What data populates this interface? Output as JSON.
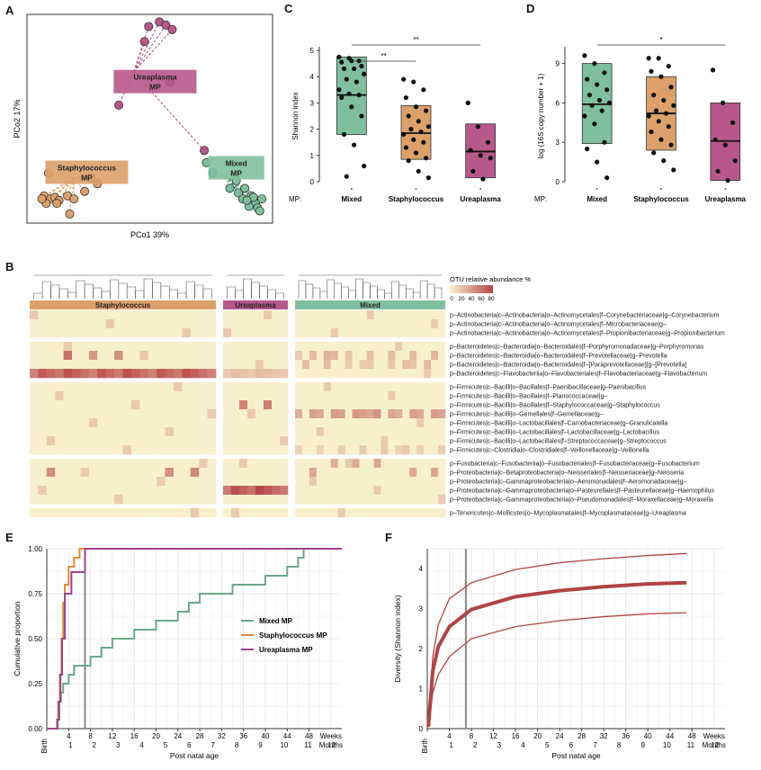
{
  "panel_labels": {
    "a": "A",
    "b": "B",
    "c": "C",
    "d": "D",
    "e": "E",
    "f": "F"
  },
  "colors": {
    "mixed": "#5fa88a",
    "staph": "#e0a060",
    "urea": "#a8487a",
    "mixed_fill": "#7fbf9f",
    "staph_fill": "#dca06a",
    "urea_fill": "#b8588a",
    "heat_bg": "#f8f0cc",
    "heat_hi": "#b8484a",
    "f_line": "#b04446",
    "e_green": "#6aa88a",
    "e_orange": "#e08a3a",
    "e_purple": "#a0408a"
  },
  "chart_data": [
    {
      "panel": "A",
      "type": "scatter",
      "xlabel": "PCo1 39%",
      "ylabel": "PCo2 17%",
      "groups": [
        {
          "name": "Ureaplasma MP",
          "label_lines": [
            "Ureaplasma",
            "MP"
          ],
          "centroid": [
            -0.05,
            0.62
          ],
          "points": [
            [
              0.02,
              0.92
            ],
            [
              0.07,
              0.95
            ],
            [
              0.1,
              0.93
            ],
            [
              0.13,
              0.9
            ],
            [
              0.0,
              0.82
            ],
            [
              -0.12,
              0.4
            ],
            [
              0.12,
              0.55
            ],
            [
              0.28,
              0.1
            ]
          ]
        },
        {
          "name": "Staphylococcus MP",
          "label_lines": [
            "Staphylococcus",
            "MP"
          ],
          "centroid": [
            -0.33,
            -0.08
          ],
          "points": [
            [
              -0.45,
              -0.05
            ],
            [
              -0.47,
              -0.2
            ],
            [
              -0.44,
              -0.22
            ],
            [
              -0.42,
              -0.21
            ],
            [
              -0.4,
              -0.23
            ],
            [
              -0.46,
              -0.25
            ],
            [
              -0.41,
              -0.25
            ],
            [
              -0.36,
              -0.2
            ],
            [
              -0.33,
              -0.22
            ],
            [
              -0.28,
              -0.17
            ],
            [
              -0.25,
              -0.08
            ],
            [
              -0.22,
              -0.12
            ],
            [
              -0.35,
              -0.32
            ],
            [
              -0.48,
              -0.22
            ]
          ]
        },
        {
          "name": "Mixed MP",
          "label_lines": [
            "Mixed",
            "MP"
          ],
          "centroid": [
            0.38,
            -0.07
          ],
          "points": [
            [
              0.29,
              0.02
            ],
            [
              0.32,
              -0.05
            ],
            [
              0.4,
              -0.15
            ],
            [
              0.44,
              -0.18
            ],
            [
              0.46,
              -0.22
            ],
            [
              0.5,
              -0.2
            ],
            [
              0.52,
              -0.25
            ],
            [
              0.49,
              -0.27
            ],
            [
              0.53,
              -0.28
            ],
            [
              0.51,
              -0.21
            ],
            [
              0.47,
              -0.15
            ],
            [
              0.43,
              -0.1
            ],
            [
              0.55,
              -0.22
            ],
            [
              0.54,
              -0.3
            ],
            [
              0.48,
              -0.23
            ]
          ]
        }
      ]
    },
    {
      "panel": "C",
      "type": "box",
      "ylabel": "Shannon index",
      "ylim": [
        0,
        5
      ],
      "yticks": [
        0,
        1,
        2,
        3,
        4,
        5
      ],
      "row_label": "MP:",
      "categories": [
        "Mixed",
        "Staphylococcus",
        "Ureaplasma"
      ],
      "boxes": [
        {
          "q1": 1.8,
          "median": 3.3,
          "q3": 4.75,
          "points": [
            4.75,
            4.7,
            4.6,
            4.55,
            4.6,
            4.4,
            4.3,
            4.3,
            4.1,
            3.9,
            3.8,
            3.5,
            3.35,
            3.3,
            3.2,
            2.85,
            2.5,
            1.8,
            1.4,
            0.6,
            0.2
          ]
        },
        {
          "q1": 0.85,
          "median": 1.85,
          "q3": 2.9,
          "points": [
            3.9,
            3.8,
            3.5,
            3.2,
            2.85,
            2.7,
            2.5,
            2.3,
            2.1,
            2.0,
            1.9,
            1.8,
            1.6,
            1.5,
            1.3,
            1.1,
            0.9,
            0.8,
            0.4,
            0.15
          ]
        },
        {
          "q1": 0.15,
          "median": 1.15,
          "q3": 2.2,
          "points": [
            3.0,
            2.1,
            1.5,
            1.2,
            1.0,
            0.9,
            0.4,
            0.1
          ]
        }
      ],
      "significance": [
        {
          "from": 0,
          "to": 2,
          "label": "**"
        },
        {
          "from": 0,
          "to": 1,
          "label": "**"
        }
      ]
    },
    {
      "panel": "D",
      "type": "box",
      "ylabel": "log (16S copy number + 1)",
      "ylim": [
        0,
        10
      ],
      "yticks": [
        0,
        3,
        6,
        9
      ],
      "row_label": "MP:",
      "categories": [
        "Mixed",
        "Staphylococcus",
        "Ureaplasma"
      ],
      "boxes": [
        {
          "q1": 2.9,
          "median": 5.9,
          "q3": 9.0,
          "points": [
            9.6,
            9.0,
            8.3,
            7.8,
            7.4,
            7.0,
            6.6,
            6.2,
            6.0,
            5.8,
            5.4,
            5.0,
            4.4,
            3.0,
            2.5,
            1.5,
            0.3
          ]
        },
        {
          "q1": 2.4,
          "median": 5.2,
          "q3": 8.0,
          "points": [
            9.4,
            9.4,
            8.8,
            8.4,
            8.0,
            7.2,
            6.6,
            6.2,
            5.8,
            5.4,
            5.2,
            5.0,
            4.6,
            4.2,
            3.8,
            3.2,
            2.8,
            2.2,
            1.6,
            0.9
          ]
        },
        {
          "q1": 0.1,
          "median": 3.1,
          "q3": 6.0,
          "points": [
            8.5,
            6.0,
            4.5,
            3.2,
            2.8,
            1.6,
            0.8,
            0.1
          ]
        }
      ],
      "significance": [
        {
          "from": 0,
          "to": 2,
          "label": "*"
        }
      ]
    },
    {
      "panel": "B",
      "type": "heatmap",
      "legend_title": "OTU relative abundance %",
      "legend_ticks": [
        "0",
        "20",
        "40",
        "60",
        "80"
      ],
      "column_groups": [
        "Staphylococcus",
        "Ureaplasma",
        "Mixed"
      ],
      "row_blocks": [
        [
          "p–Actinobacteria|c–Actinobacteria|o–Actinomycetales|f–Corynebacteriaceae|g–Corynebacterium",
          "p–Actinobacteria|c–Actinobacteria|o–Actinomycetales|f–Microbacteriaceae|g–",
          "p–Actinobacteria|c–Actinobacteria|o–Actinomycetales|f–Propionibacteriaceae|g–Propionibacterium"
        ],
        [
          "p–Bacteroidetes|c–Bacteroidia|o–Bacteroidales|f–Porphyromonadaceae|g–Porphyromonas",
          "p–Bacteroidetes|c–Bacteroidia|o–Bacteroidales|f–Prevotellaceae|g–Prevotella",
          "p–Bacteroidetes|c–Bacteroidia|o–Bacteroidales|f–[Paraprevotellaceae]|g–[Prevotella]",
          "p–Bacteroidetes|c–Flavobacteriia|o–Flavobacteriales|f–Flavobacteriaceae|g–Flavobacterium"
        ],
        [
          "p–Firmicutes|c–Bacilli|o–Bacillales|f–Paenibacillaceae|g–Paenibacillus",
          "p–Firmicutes|c–Bacilli|o–Bacillales|f–Planococcaceae|g–",
          "p–Firmicutes|c–Bacilli|o–Bacillales|f–Staphylococcaceae|g–Staphylococcus",
          "p–Firmicutes|c–Bacilli|o–Gemellales|f–Gemellaceae|g–",
          "p–Firmicutes|c–Bacilli|o–Lactobacillales|f–Carnobacteriaceae|g–Granulicatella",
          "p–Firmicutes|c–Bacilli|o–Lactobacillales|f–Lactobacillaceae|g–Lactobacillus",
          "p–Firmicutes|c–Bacilli|o–Lactobacillales|f–Streptococcaceae|g–Streptococcus",
          "p–Firmicutes|c–Clostridia|o–Clostridiales|f–Veillonellaceae|g–Veillonella"
        ],
        [
          "p–Fusobacteria|c–Fusobacteriia|o–Fusobacteriales|f–Fusobacteriaceae|g–Fusobacterium",
          "p–Proteobacteria|c–Betaproteobacteria|o–Neisseriales|f–Neisseriaceae|g–Neisseria",
          "p–Proteobacteria|c–Gammaproteobacteria|o–Aeromonadales|f–Aeromonadaceae|g–",
          "p–Proteobacteria|c–Gammaproteobacteria|o–Pasteurellales|f–Pasteurellaceae|g–Haemophilus",
          "p–Proteobacteria|c–Gammaproteobacteria|o–Pseudomonadales|f–Moraxellaceae|g–Moraxella"
        ],
        [
          "p–Tenericutes|c–Mollicutes|o–Mycoplasmatales|f–Mycoplasmataceae|g–Ureaplasma"
        ]
      ],
      "hot_cells": [
        {
          "row": 6,
          "group": "Staphylococcus",
          "value": 75,
          "span": "all"
        },
        {
          "row": 6,
          "group": "Ureaplasma",
          "value": 25,
          "span": "all"
        },
        {
          "row": 18,
          "group": "Ureaplasma",
          "value": 80,
          "span": "all"
        },
        {
          "row": 10,
          "group": "Mixed",
          "value": 45,
          "span": "most"
        },
        {
          "row": 4,
          "group": "Mixed",
          "value": 30,
          "span": "some"
        },
        {
          "row": 5,
          "group": "Mixed",
          "value": 25,
          "span": "some"
        },
        {
          "row": 14,
          "group": "Mixed",
          "value": 20,
          "span": "some"
        },
        {
          "row": 15,
          "group": "Mixed",
          "value": 35,
          "span": "few"
        },
        {
          "row": 16,
          "group": "Mixed",
          "value": 40,
          "span": "few"
        },
        {
          "row": 9,
          "group": "Ureaplasma",
          "value": 60,
          "span": "few"
        },
        {
          "row": 4,
          "group": "Staphylococcus",
          "value": 60,
          "span": "few"
        },
        {
          "row": 16,
          "group": "Staphylococcus",
          "value": 55,
          "span": "few"
        }
      ]
    },
    {
      "panel": "E",
      "type": "line",
      "xlabel": "Post natal age",
      "ylabel": "Cumulative proportion",
      "ylim": [
        0,
        1
      ],
      "yticks": [
        "0.00",
        "0.25",
        "0.50",
        "0.75",
        "1.00"
      ],
      "xticks_weeks": [
        "Birth",
        "4",
        "8",
        "12",
        "16",
        "20",
        "24",
        "28",
        "32",
        "36",
        "40",
        "44",
        "48",
        "Weeks"
      ],
      "xticks_months": [
        "1",
        "2",
        "3",
        "4",
        "5",
        "6",
        "7",
        "8",
        "9",
        "10",
        "11",
        "12",
        "Months"
      ],
      "vline_week": 7,
      "legend": [
        "Mixed MP",
        "Staphylococcus MP",
        "Ureaplasma MP"
      ],
      "series": [
        {
          "name": "Mixed MP",
          "steps": [
            [
              0,
              0
            ],
            [
              2,
              0.05
            ],
            [
              2.3,
              0.15
            ],
            [
              2.6,
              0.2
            ],
            [
              3,
              0.25
            ],
            [
              4,
              0.3
            ],
            [
              5,
              0.35
            ],
            [
              8,
              0.4
            ],
            [
              10,
              0.45
            ],
            [
              12,
              0.5
            ],
            [
              16,
              0.55
            ],
            [
              20,
              0.6
            ],
            [
              24,
              0.65
            ],
            [
              26,
              0.7
            ],
            [
              28,
              0.75
            ],
            [
              34,
              0.8
            ],
            [
              40,
              0.85
            ],
            [
              44,
              0.9
            ],
            [
              46,
              0.95
            ],
            [
              47,
              1.0
            ],
            [
              54,
              1.0
            ]
          ]
        },
        {
          "name": "Staphylococcus MP",
          "steps": [
            [
              0,
              0
            ],
            [
              1.9,
              0.05
            ],
            [
              2.1,
              0.15
            ],
            [
              2.4,
              0.3
            ],
            [
              2.7,
              0.5
            ],
            [
              3,
              0.7
            ],
            [
              3.3,
              0.8
            ],
            [
              4,
              0.9
            ],
            [
              5,
              0.95
            ],
            [
              6,
              1.0
            ],
            [
              54,
              1.0
            ]
          ]
        },
        {
          "name": "Ureaplasma MP",
          "steps": [
            [
              0,
              0
            ],
            [
              1.9,
              0.05
            ],
            [
              2.2,
              0.15
            ],
            [
              2.5,
              0.3
            ],
            [
              2.8,
              0.5
            ],
            [
              3.3,
              0.75
            ],
            [
              4.5,
              0.87
            ],
            [
              6,
              0.87
            ],
            [
              7,
              1.0
            ],
            [
              54,
              1.0
            ]
          ]
        }
      ]
    },
    {
      "panel": "F",
      "type": "line",
      "xlabel": "Post natal age",
      "ylabel": "Diversity (Shannon index)",
      "ylim": [
        0,
        4.5
      ],
      "yticks": [
        "0",
        "1",
        "2",
        "3",
        "4"
      ],
      "xticks_weeks": [
        "Birth",
        "4",
        "8",
        "12",
        "16",
        "20",
        "24",
        "28",
        "32",
        "36",
        "40",
        "44",
        "48",
        "Weeks"
      ],
      "xticks_months": [
        "1",
        "2",
        "3",
        "4",
        "5",
        "6",
        "7",
        "8",
        "9",
        "10",
        "11",
        "12",
        "Months"
      ],
      "vline_week": 7,
      "series": [
        {
          "name": "upper",
          "points": [
            [
              0.2,
              0.05
            ],
            [
              1,
              1.8
            ],
            [
              2,
              2.6
            ],
            [
              4,
              3.25
            ],
            [
              8,
              3.65
            ],
            [
              16,
              3.98
            ],
            [
              24,
              4.15
            ],
            [
              32,
              4.25
            ],
            [
              40,
              4.33
            ],
            [
              47,
              4.38
            ]
          ]
        },
        {
          "name": "fit",
          "points": [
            [
              0.2,
              0.05
            ],
            [
              1,
              1.45
            ],
            [
              2,
              2.05
            ],
            [
              4,
              2.55
            ],
            [
              8,
              2.98
            ],
            [
              16,
              3.3
            ],
            [
              24,
              3.45
            ],
            [
              32,
              3.55
            ],
            [
              40,
              3.62
            ],
            [
              47,
              3.65
            ]
          ]
        },
        {
          "name": "lower",
          "points": [
            [
              0.2,
              0.05
            ],
            [
              1,
              0.9
            ],
            [
              2,
              1.35
            ],
            [
              4,
              1.8
            ],
            [
              8,
              2.25
            ],
            [
              16,
              2.55
            ],
            [
              24,
              2.7
            ],
            [
              32,
              2.8
            ],
            [
              40,
              2.87
            ],
            [
              47,
              2.9
            ]
          ]
        }
      ]
    }
  ]
}
